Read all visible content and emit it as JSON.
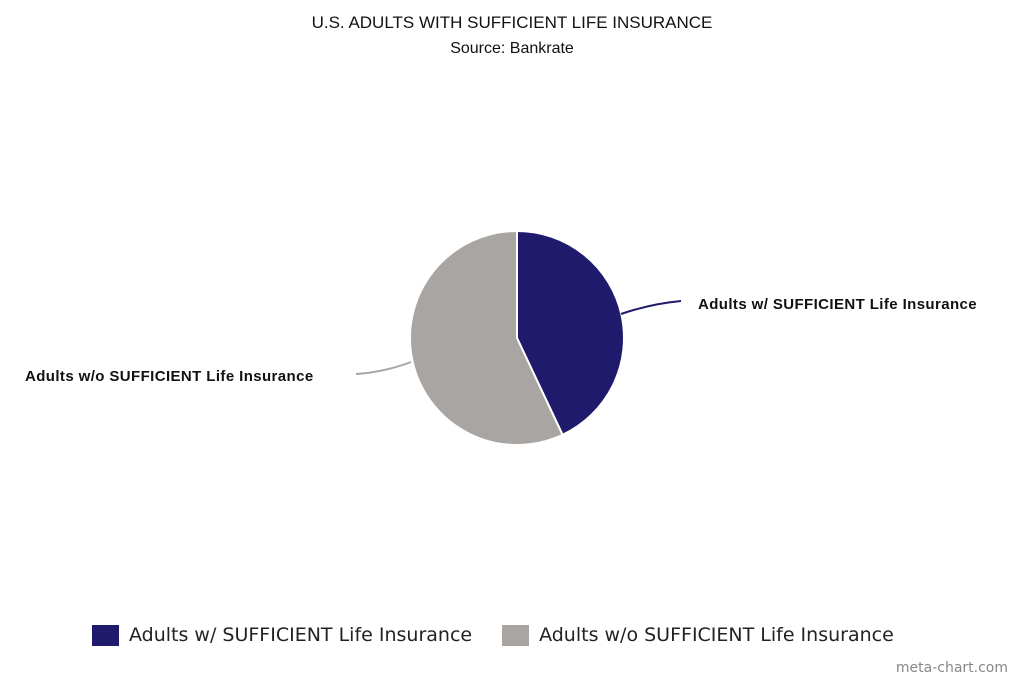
{
  "chart_data": {
    "type": "pie",
    "title": "U.S. ADULTS WITH SUFFICIENT LIFE INSURANCE",
    "subtitle": "Source: Bankrate",
    "categories": [
      "Adults w/ SUFFICIENT Life Insurance",
      "Adults w/o SUFFICIENT Life Insurance"
    ],
    "values": [
      43,
      57
    ],
    "colors": [
      "#1f1a6b",
      "#a8a5a2"
    ],
    "legend_position": "bottom",
    "data_labels": [
      "Adults w/ SUFFICIENT Life Insurance",
      "Adults w/o SUFFICIENT Life Insurance"
    ]
  },
  "credit": "meta-chart.com"
}
